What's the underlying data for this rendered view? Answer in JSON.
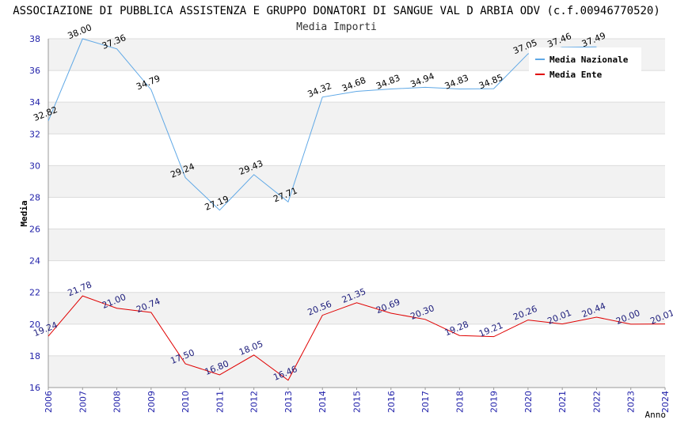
{
  "chart_data": {
    "type": "line",
    "title": "ASSOCIAZIONE DI PUBBLICA ASSISTENZA E GRUPPO DONATORI DI SANGUE VAL D ARBIA ODV (c.f.00946770520)",
    "subtitle": "Media Importi",
    "ylabel": "Media",
    "xlabel": "Anno",
    "ylim": [
      16,
      38
    ],
    "yticks": [
      16,
      18,
      20,
      22,
      24,
      26,
      28,
      30,
      32,
      34,
      36,
      38
    ],
    "categories": [
      "2006",
      "2007",
      "2008",
      "2009",
      "2010",
      "2011",
      "2012",
      "2013",
      "2014",
      "2015",
      "2016",
      "2017",
      "2018",
      "2019",
      "2020",
      "2021",
      "2022",
      "2023",
      "2024"
    ],
    "series": [
      {
        "name": "Media Nazionale",
        "color": "#5fa8e6",
        "label_color": "#000000",
        "values": [
          32.82,
          38.0,
          37.36,
          34.79,
          29.24,
          27.19,
          29.43,
          27.71,
          34.32,
          34.68,
          34.83,
          34.94,
          34.83,
          34.85,
          37.05,
          37.46,
          37.49,
          null,
          null
        ],
        "labels": [
          "32.82",
          "38.00",
          "37.36",
          "34.79",
          "29.24",
          "27.19",
          "29.43",
          "27.71",
          "34.32",
          "34.68",
          "34.83",
          "34.94",
          "34.83",
          "34.85",
          "37.05",
          "37.46",
          "37.49",
          null,
          null
        ]
      },
      {
        "name": "Media Ente",
        "color": "#e00000",
        "label_color": "#1a1a7a",
        "values": [
          19.24,
          21.78,
          21.0,
          20.74,
          17.5,
          16.8,
          18.05,
          16.46,
          20.56,
          21.35,
          20.69,
          20.3,
          19.28,
          19.21,
          20.26,
          20.01,
          20.44,
          20.0,
          20.01
        ],
        "labels": [
          "19.24",
          "21.78",
          "21.00",
          "20.74",
          "17.50",
          "16.80",
          "18.05",
          "16.46",
          "20.56",
          "21.35",
          "20.69",
          "20.30",
          "19.28",
          "19.21",
          "20.26",
          "20.01",
          "20.44",
          "20.00",
          "20.01"
        ]
      }
    ],
    "grid": "alternating horizontal bands",
    "legend": "top-right"
  }
}
